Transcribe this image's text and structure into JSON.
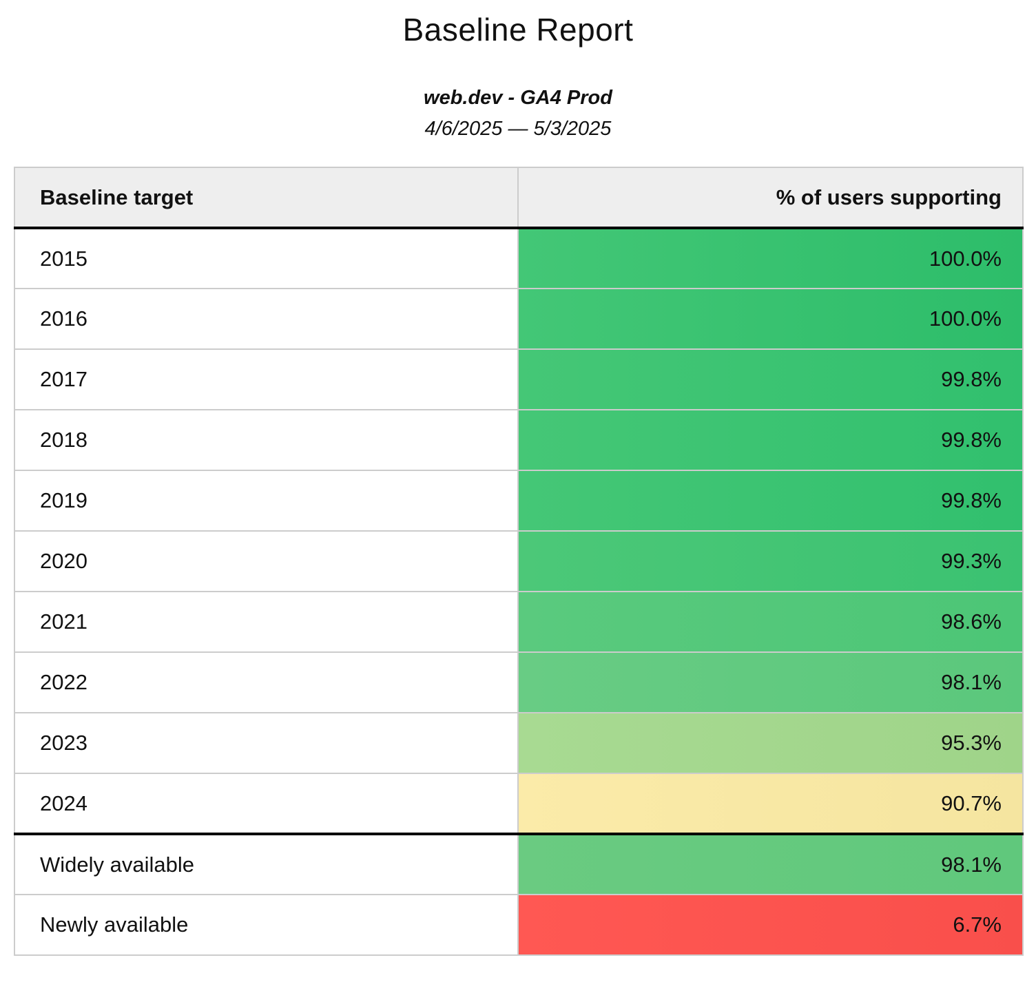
{
  "report": {
    "title": "Baseline Report",
    "subtitle": "web.dev - GA4 Prod",
    "date_range": "4/6/2025 — 5/3/2025"
  },
  "table": {
    "columns": [
      "Baseline target",
      "% of users supporting"
    ],
    "rows": [
      {
        "target": "2015",
        "value": "100.0%",
        "bg": "#43c776",
        "bg2": "#2dbd6a",
        "group": "year"
      },
      {
        "target": "2016",
        "value": "100.0%",
        "bg": "#43c776",
        "bg2": "#2dbd6a",
        "group": "year"
      },
      {
        "target": "2017",
        "value": "99.8%",
        "bg": "#45c776",
        "bg2": "#31c06e",
        "group": "year"
      },
      {
        "target": "2018",
        "value": "99.8%",
        "bg": "#45c776",
        "bg2": "#31c06e",
        "group": "year"
      },
      {
        "target": "2019",
        "value": "99.8%",
        "bg": "#45c776",
        "bg2": "#31c06e",
        "group": "year"
      },
      {
        "target": "2020",
        "value": "99.3%",
        "bg": "#4cc878",
        "bg2": "#3bc271",
        "group": "year"
      },
      {
        "target": "2021",
        "value": "98.6%",
        "bg": "#5aca7e",
        "bg2": "#4cc676",
        "group": "year"
      },
      {
        "target": "2022",
        "value": "98.1%",
        "bg": "#68cc84",
        "bg2": "#5bc87c",
        "group": "year"
      },
      {
        "target": "2023",
        "value": "95.3%",
        "bg": "#a8da92",
        "bg2": "#9fd489",
        "group": "year"
      },
      {
        "target": "2024",
        "value": "90.7%",
        "bg": "#fbeba9",
        "bg2": "#f5e5a0",
        "group": "year"
      },
      {
        "target": "Widely available",
        "value": "98.1%",
        "bg": "#6acb81",
        "bg2": "#60c87c",
        "group": "status"
      },
      {
        "target": "Newly available",
        "value": "6.7%",
        "bg": "#ff5853",
        "bg2": "#f94f4b",
        "group": "status"
      }
    ],
    "style": {
      "header_bg": "#eeeeee",
      "divider_color": "#000000",
      "grid_color": "#cccccc",
      "text_color": "#111111"
    }
  },
  "chart_data": {
    "type": "table",
    "title": "Baseline Report",
    "subtitle": "web.dev - GA4 Prod",
    "date_range": "4/6/2025 — 5/3/2025",
    "categories": [
      "2015",
      "2016",
      "2017",
      "2018",
      "2019",
      "2020",
      "2021",
      "2022",
      "2023",
      "2024",
      "Widely available",
      "Newly available"
    ],
    "values": [
      100.0,
      100.0,
      99.8,
      99.8,
      99.8,
      99.3,
      98.6,
      98.1,
      95.3,
      90.7,
      98.1,
      6.7
    ],
    "value_unit": "%",
    "xlabel": "Baseline target",
    "ylabel": "% of users supporting"
  }
}
